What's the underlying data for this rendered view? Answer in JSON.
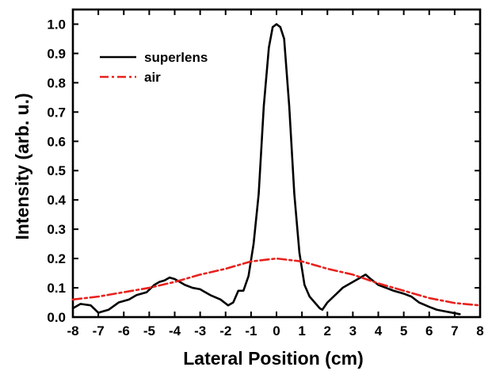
{
  "chart_data": {
    "type": "line",
    "title": "",
    "xlabel": "Lateral Position (cm)",
    "ylabel": "Intensity (arb. u.)",
    "xlim": [
      -8,
      8
    ],
    "ylim": [
      0,
      1.05
    ],
    "x_ticks": [
      -8,
      -7,
      -6,
      -5,
      -4,
      -3,
      -2,
      -1,
      0,
      1,
      2,
      3,
      4,
      5,
      6,
      7,
      8
    ],
    "x_tick_labels": [
      "-8",
      "-7",
      "-6",
      "-5",
      "-4",
      "-3",
      "-2",
      "-1",
      "0",
      "1",
      "2",
      "3",
      "4",
      "5",
      "6",
      "7",
      "8"
    ],
    "y_ticks": [
      0.0,
      0.1,
      0.2,
      0.3,
      0.4,
      0.5,
      0.6,
      0.7,
      0.8,
      0.9,
      1.0
    ],
    "y_tick_labels": [
      "0.0",
      "0.1",
      "0.2",
      "0.3",
      "0.4",
      "0.5",
      "0.6",
      "0.7",
      "0.8",
      "0.9",
      "1.0"
    ],
    "grid": false,
    "legend_position": "top-left",
    "series": [
      {
        "name": "superlens",
        "color": "#000000",
        "dash": "solid",
        "x": [
          -8.0,
          -7.7,
          -7.3,
          -7.0,
          -6.6,
          -6.2,
          -5.8,
          -5.5,
          -5.1,
          -4.8,
          -4.6,
          -4.4,
          -4.2,
          -4.0,
          -3.8,
          -3.6,
          -3.3,
          -3.0,
          -2.6,
          -2.2,
          -1.9,
          -1.7,
          -1.5,
          -1.3,
          -1.1,
          -0.9,
          -0.7,
          -0.5,
          -0.3,
          -0.15,
          0.0,
          0.15,
          0.3,
          0.5,
          0.7,
          0.9,
          1.1,
          1.3,
          1.5,
          1.7,
          1.8,
          2.0,
          2.3,
          2.6,
          3.0,
          3.3,
          3.5,
          3.7,
          4.0,
          4.3,
          4.6,
          5.0,
          5.3,
          5.6,
          6.0,
          6.3,
          6.6,
          6.9,
          7.2
        ],
        "y": [
          0.03,
          0.045,
          0.04,
          0.015,
          0.025,
          0.05,
          0.06,
          0.075,
          0.085,
          0.11,
          0.12,
          0.125,
          0.135,
          0.13,
          0.12,
          0.11,
          0.1,
          0.095,
          0.075,
          0.06,
          0.04,
          0.05,
          0.09,
          0.09,
          0.14,
          0.25,
          0.42,
          0.72,
          0.92,
          0.99,
          1.0,
          0.99,
          0.95,
          0.72,
          0.42,
          0.22,
          0.11,
          0.07,
          0.05,
          0.03,
          0.025,
          0.05,
          0.075,
          0.1,
          0.12,
          0.135,
          0.145,
          0.13,
          0.11,
          0.1,
          0.09,
          0.08,
          0.07,
          0.05,
          0.035,
          0.025,
          0.02,
          0.015,
          0.01
        ]
      },
      {
        "name": "air",
        "color": "#e8211c",
        "dash": "dashdot",
        "x": [
          -8.0,
          -7.0,
          -6.0,
          -5.0,
          -4.0,
          -3.0,
          -2.0,
          -1.0,
          0.0,
          1.0,
          2.0,
          3.0,
          4.0,
          5.0,
          6.0,
          7.0,
          8.0
        ],
        "y": [
          0.06,
          0.07,
          0.085,
          0.1,
          0.12,
          0.145,
          0.165,
          0.19,
          0.2,
          0.19,
          0.165,
          0.145,
          0.115,
          0.09,
          0.065,
          0.048,
          0.04
        ]
      }
    ]
  }
}
